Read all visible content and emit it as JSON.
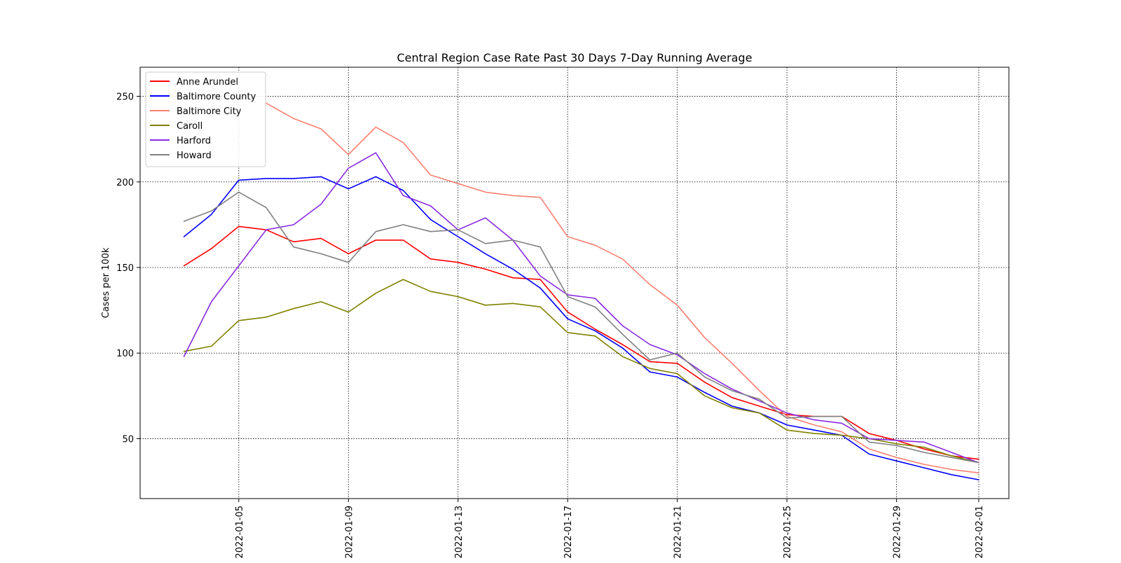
{
  "chart_data": {
    "type": "line",
    "title": "Central Region Case Rate  Past 30 Days 7-Day Running Average",
    "xlabel": "",
    "ylabel": "Cases per 100k",
    "x": [
      "2022-01-03",
      "2022-01-04",
      "2022-01-05",
      "2022-01-06",
      "2022-01-07",
      "2022-01-08",
      "2022-01-09",
      "2022-01-10",
      "2022-01-11",
      "2022-01-12",
      "2022-01-13",
      "2022-01-14",
      "2022-01-15",
      "2022-01-16",
      "2022-01-17",
      "2022-01-18",
      "2022-01-19",
      "2022-01-20",
      "2022-01-21",
      "2022-01-22",
      "2022-01-23",
      "2022-01-24",
      "2022-01-25",
      "2022-01-26",
      "2022-01-27",
      "2022-01-28",
      "2022-01-29",
      "2022-01-30",
      "2022-01-31",
      "2022-02-01"
    ],
    "xticks": [
      "2022-01-05",
      "2022-01-09",
      "2022-01-13",
      "2022-01-17",
      "2022-01-21",
      "2022-01-25",
      "2022-01-29",
      "2022-02-01"
    ],
    "xlim": [
      "2022-01-01.4",
      "2022-02-02.1"
    ],
    "ylim": [
      15,
      267
    ],
    "yticks": [
      50,
      100,
      150,
      200,
      250
    ],
    "grid": true,
    "legend_position": "top-left",
    "series": [
      {
        "name": "Anne Arundel",
        "color": "#ff0000",
        "values": [
          151,
          161,
          174,
          172,
          165,
          167,
          158,
          166,
          166,
          155,
          153,
          149,
          144,
          143,
          124,
          114,
          105,
          95,
          94,
          83,
          74,
          69,
          64,
          63,
          63,
          53,
          49,
          44,
          40,
          38
        ]
      },
      {
        "name": "Baltimore County",
        "color": "#0000ff",
        "values": [
          168,
          181,
          201,
          202,
          202,
          203,
          196,
          203,
          195,
          178,
          168,
          158,
          149,
          138,
          120,
          113,
          103,
          89,
          86,
          77,
          69,
          65,
          58,
          55,
          52,
          41,
          37,
          33,
          29,
          26
        ]
      },
      {
        "name": "Baltimore City",
        "color": "#fa8072",
        "values": [
          null,
          null,
          null,
          246,
          237,
          231,
          216,
          232,
          223,
          204,
          199,
          194,
          192,
          191,
          168,
          163,
          155,
          140,
          128,
          109,
          94,
          78,
          63,
          58,
          54,
          44,
          39,
          35,
          32,
          30
        ]
      },
      {
        "name": "Caroll",
        "color": "#808000",
        "values": [
          101,
          104,
          119,
          121,
          126,
          130,
          124,
          135,
          143,
          136,
          133,
          128,
          129,
          127,
          112,
          110,
          98,
          91,
          88,
          75,
          68,
          65,
          55,
          53,
          52,
          50,
          47,
          45,
          40,
          36
        ]
      },
      {
        "name": "Harford",
        "color": "#8a2be2",
        "values": [
          98,
          130,
          151,
          172,
          175,
          187,
          208,
          217,
          192,
          186,
          172,
          179,
          166,
          145,
          134,
          132,
          116,
          105,
          99,
          88,
          79,
          72,
          65,
          61,
          59,
          50,
          49,
          48,
          42,
          36
        ]
      },
      {
        "name": "Howard",
        "color": "#808080",
        "values": [
          177,
          183,
          194,
          185,
          162,
          158,
          153,
          171,
          175,
          171,
          172,
          164,
          166,
          162,
          133,
          127,
          111,
          96,
          100,
          86,
          78,
          73,
          62,
          63,
          63,
          48,
          46,
          42,
          39,
          36
        ]
      }
    ]
  }
}
